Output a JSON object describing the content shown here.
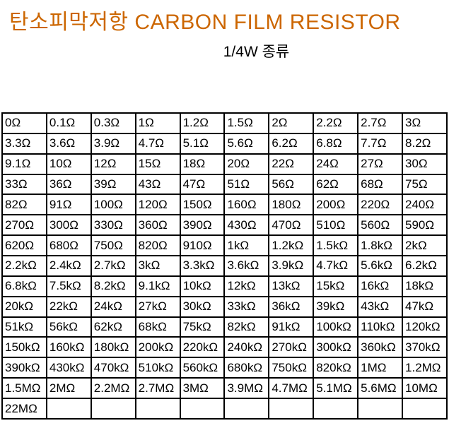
{
  "title": "탄소피막저항 CARBON FILM RESISTOR",
  "subtitle": "1/4W 종류",
  "colors": {
    "title_text": "#CC6600",
    "body_text": "#000000",
    "table_border": "#000000",
    "background": "#FFFFFF"
  },
  "table": {
    "columns": 10,
    "rows": [
      [
        "0Ω",
        "0.1Ω",
        "0.3Ω",
        "1Ω",
        "1.2Ω",
        "1.5Ω",
        "2Ω",
        "2.2Ω",
        "2.7Ω",
        "3Ω"
      ],
      [
        "3.3Ω",
        "3.6Ω",
        "3.9Ω",
        "4.7Ω",
        "5.1Ω",
        "5.6Ω",
        "6.2Ω",
        "6.8Ω",
        "7.7Ω",
        "8.2Ω"
      ],
      [
        "9.1Ω",
        "10Ω",
        "12Ω",
        "15Ω",
        "18Ω",
        "20Ω",
        "22Ω",
        "24Ω",
        "27Ω",
        "30Ω"
      ],
      [
        "33Ω",
        "36Ω",
        "39Ω",
        "43Ω",
        "47Ω",
        "51Ω",
        "56Ω",
        "62Ω",
        "68Ω",
        "75Ω"
      ],
      [
        "82Ω",
        "91Ω",
        "100Ω",
        "120Ω",
        "150Ω",
        "160Ω",
        "180Ω",
        "200Ω",
        "220Ω",
        "240Ω"
      ],
      [
        "270Ω",
        "300Ω",
        "330Ω",
        "360Ω",
        "390Ω",
        "430Ω",
        "470Ω",
        "510Ω",
        "560Ω",
        "590Ω"
      ],
      [
        "620Ω",
        "680Ω",
        "750Ω",
        "820Ω",
        "910Ω",
        "1kΩ",
        "1.2kΩ",
        "1.5kΩ",
        "1.8kΩ",
        "2kΩ"
      ],
      [
        "2.2kΩ",
        "2.4kΩ",
        "2.7kΩ",
        "3kΩ",
        "3.3kΩ",
        "3.6kΩ",
        "3.9kΩ",
        "4.7kΩ",
        "5.6kΩ",
        "6.2kΩ"
      ],
      [
        "6.8kΩ",
        "7.5kΩ",
        "8.2kΩ",
        "9.1kΩ",
        "10kΩ",
        "12kΩ",
        "13kΩ",
        "15kΩ",
        "16kΩ",
        "18kΩ"
      ],
      [
        "20kΩ",
        "22kΩ",
        "24kΩ",
        "27kΩ",
        "30kΩ",
        "33kΩ",
        "36kΩ",
        "39kΩ",
        "43kΩ",
        "47kΩ"
      ],
      [
        "51kΩ",
        "56kΩ",
        "62kΩ",
        "68kΩ",
        "75kΩ",
        "82kΩ",
        "91kΩ",
        "100kΩ",
        "110kΩ",
        "120kΩ"
      ],
      [
        "150kΩ",
        "160kΩ",
        "180kΩ",
        "200kΩ",
        "220kΩ",
        "240kΩ",
        "270kΩ",
        "300kΩ",
        "360kΩ",
        "370kΩ"
      ],
      [
        "390kΩ",
        "430kΩ",
        "470kΩ",
        "510kΩ",
        "560kΩ",
        "680kΩ",
        "750kΩ",
        "820kΩ",
        "1MΩ",
        "1.2MΩ"
      ],
      [
        "1.5MΩ",
        "2MΩ",
        "2.2MΩ",
        "2.7MΩ",
        "3MΩ",
        "3.9MΩ",
        "4.7MΩ",
        "5.1MΩ",
        "5.6MΩ",
        "10MΩ"
      ],
      [
        "22MΩ",
        "",
        "",
        "",
        "",
        "",
        "",
        "",
        "",
        ""
      ]
    ]
  }
}
